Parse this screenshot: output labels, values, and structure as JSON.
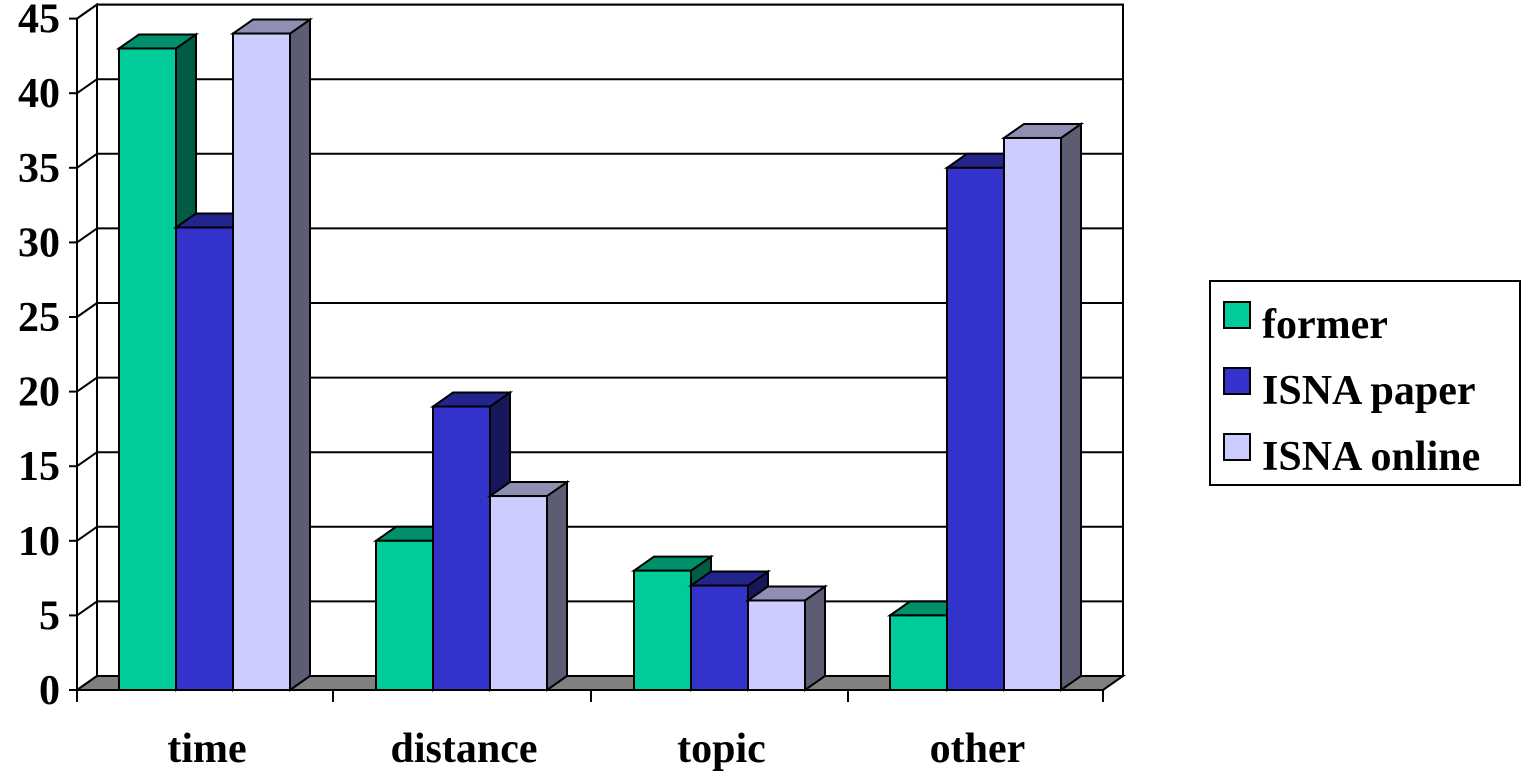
{
  "chart_data": {
    "type": "bar",
    "categories": [
      "time",
      "distance",
      "topic",
      "other"
    ],
    "series": [
      {
        "name": "former",
        "values": [
          43,
          10,
          8,
          5
        ],
        "color": "#00CC99"
      },
      {
        "name": "ISNA paper",
        "values": [
          31,
          19,
          7,
          35
        ],
        "color": "#3333CC"
      },
      {
        "name": "ISNA online",
        "values": [
          44,
          13,
          6,
          37
        ],
        "color": "#CCCCFF"
      }
    ],
    "yticks": [
      0,
      5,
      10,
      15,
      20,
      25,
      30,
      35,
      40,
      45
    ],
    "ylim": [
      0,
      45
    ],
    "grid": true,
    "legend_position": "right",
    "three_d": true,
    "floor_color": "#808080"
  }
}
